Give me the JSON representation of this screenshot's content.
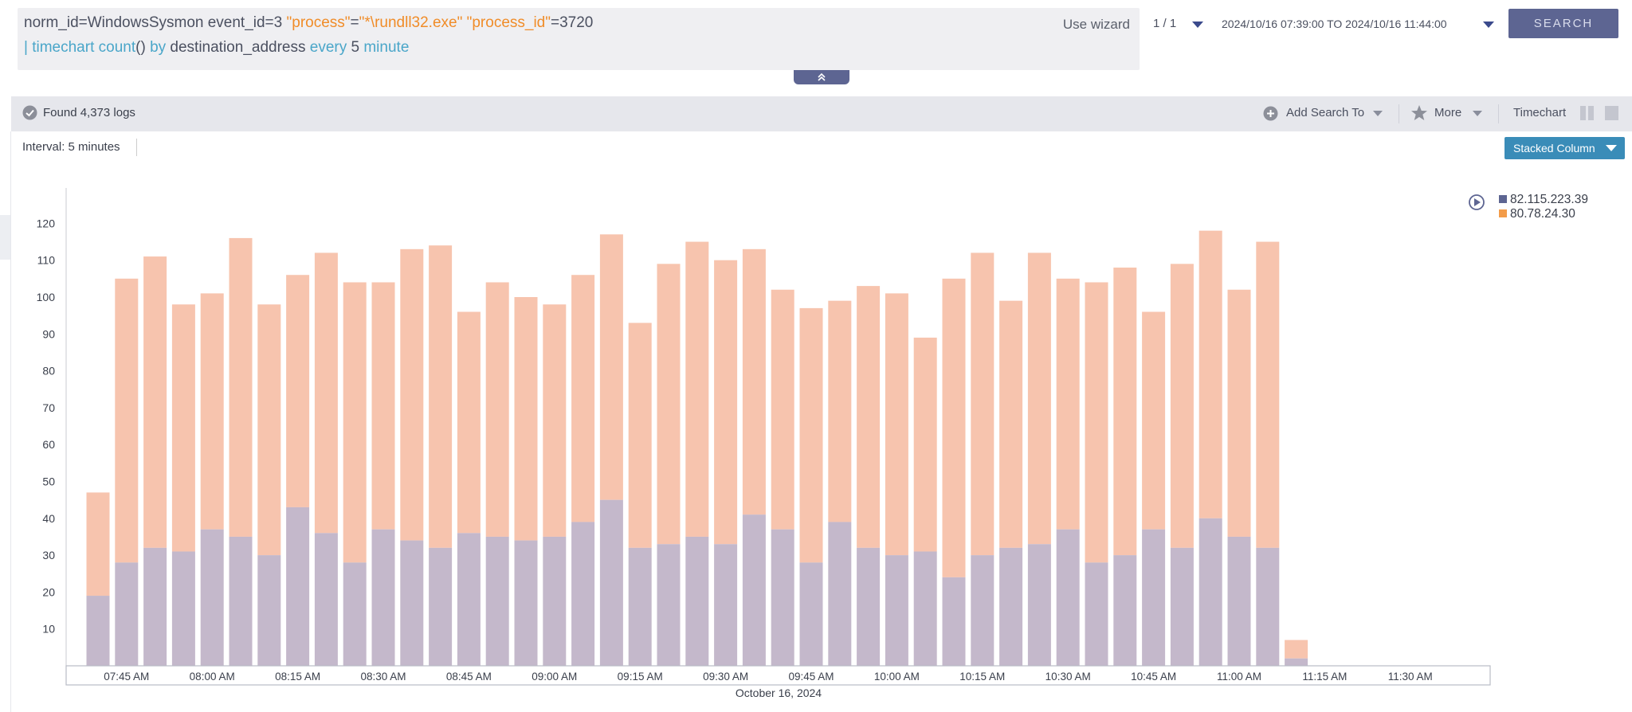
{
  "query": {
    "line1": [
      {
        "text": "norm_id=WindowsSysmon event_id=3 ",
        "color": "default"
      },
      {
        "text": "\"process\"",
        "color": "orange"
      },
      {
        "text": "=",
        "color": "default"
      },
      {
        "text": "\"*\\rundll32.exe\"",
        "color": "orange"
      },
      {
        "text": " ",
        "color": "default"
      },
      {
        "text": "\"process_id\"",
        "color": "orange"
      },
      {
        "text": "=3720",
        "color": "default"
      }
    ],
    "line2": [
      {
        "text": "| ",
        "color": "blue"
      },
      {
        "text": "timechart count",
        "color": "blue"
      },
      {
        "text": "() ",
        "color": "default"
      },
      {
        "text": "by",
        "color": "blue"
      },
      {
        "text": " destination_address ",
        "color": "default"
      },
      {
        "text": "every",
        "color": "blue"
      },
      {
        "text": " 5 ",
        "color": "default"
      },
      {
        "text": "minute",
        "color": "blue"
      }
    ],
    "use_wizard": "Use wizard"
  },
  "header": {
    "page_count": "1 / 1",
    "time_range": "2024/10/16 07:39:00 TO 2024/10/16 11:44:00",
    "search_label": "SEARCH"
  },
  "toolbar": {
    "found_label": "Found 4,373 logs",
    "add_search_to": "Add Search To",
    "more": "More",
    "timechart": "Timechart"
  },
  "interval_label": "Interval: 5 minutes",
  "chart_style_label": "Stacked Column",
  "colors": {
    "accent": "#5d6592",
    "stacked_button": "#3a8cb8",
    "series_1": "#c4b8cb",
    "series_2": "#f7c4ae",
    "legend_1": "#5d6592",
    "legend_2": "#f39c4a"
  },
  "chart_data": {
    "type": "bar",
    "stacked": true,
    "title": "",
    "xlabel": "October 16, 2024",
    "ylabel": "",
    "ylim": [
      0,
      130
    ],
    "y_ticks": [
      10,
      20,
      30,
      40,
      50,
      60,
      70,
      80,
      90,
      100,
      110,
      120
    ],
    "x_tick_labels": [
      "07:45 AM",
      "08:00 AM",
      "08:15 AM",
      "08:30 AM",
      "08:45 AM",
      "09:00 AM",
      "09:15 AM",
      "09:30 AM",
      "09:45 AM",
      "10:00 AM",
      "10:15 AM",
      "10:30 AM",
      "10:45 AM",
      "11:00 AM",
      "11:15 AM",
      "11:30 AM"
    ],
    "x": [
      "07:40",
      "07:45",
      "07:50",
      "07:55",
      "08:00",
      "08:05",
      "08:10",
      "08:15",
      "08:20",
      "08:25",
      "08:30",
      "08:35",
      "08:40",
      "08:45",
      "08:50",
      "08:55",
      "09:00",
      "09:05",
      "09:10",
      "09:15",
      "09:20",
      "09:25",
      "09:30",
      "09:35",
      "09:40",
      "09:45",
      "09:50",
      "09:55",
      "10:00",
      "10:05",
      "10:10",
      "10:15",
      "10:20",
      "10:25",
      "10:30",
      "10:35",
      "10:40",
      "10:45",
      "10:50",
      "10:55",
      "11:00",
      "11:05",
      "11:10",
      "11:15",
      "11:20",
      "11:25",
      "11:30",
      "11:35",
      "11:40",
      "11:45"
    ],
    "series": [
      {
        "name": "82.115.223.39",
        "values": [
          19,
          28,
          32,
          31,
          37,
          35,
          30,
          43,
          36,
          28,
          37,
          34,
          32,
          36,
          35,
          34,
          35,
          39,
          45,
          32,
          33,
          35,
          33,
          41,
          37,
          28,
          39,
          32,
          30,
          31,
          24,
          30,
          32,
          33,
          37,
          28,
          30,
          37,
          32,
          40,
          35,
          32,
          2,
          0,
          0,
          0,
          0,
          0,
          0,
          0
        ]
      },
      {
        "name": "80.78.24.30",
        "values": [
          28,
          77,
          79,
          67,
          64,
          81,
          68,
          63,
          76,
          76,
          67,
          79,
          82,
          60,
          69,
          66,
          63,
          67,
          72,
          61,
          76,
          80,
          77,
          72,
          65,
          69,
          60,
          71,
          71,
          58,
          81,
          82,
          67,
          79,
          68,
          76,
          78,
          59,
          77,
          78,
          67,
          83,
          5,
          0,
          0,
          0,
          0,
          0,
          0,
          0
        ]
      }
    ],
    "legend_position": "top-right"
  }
}
